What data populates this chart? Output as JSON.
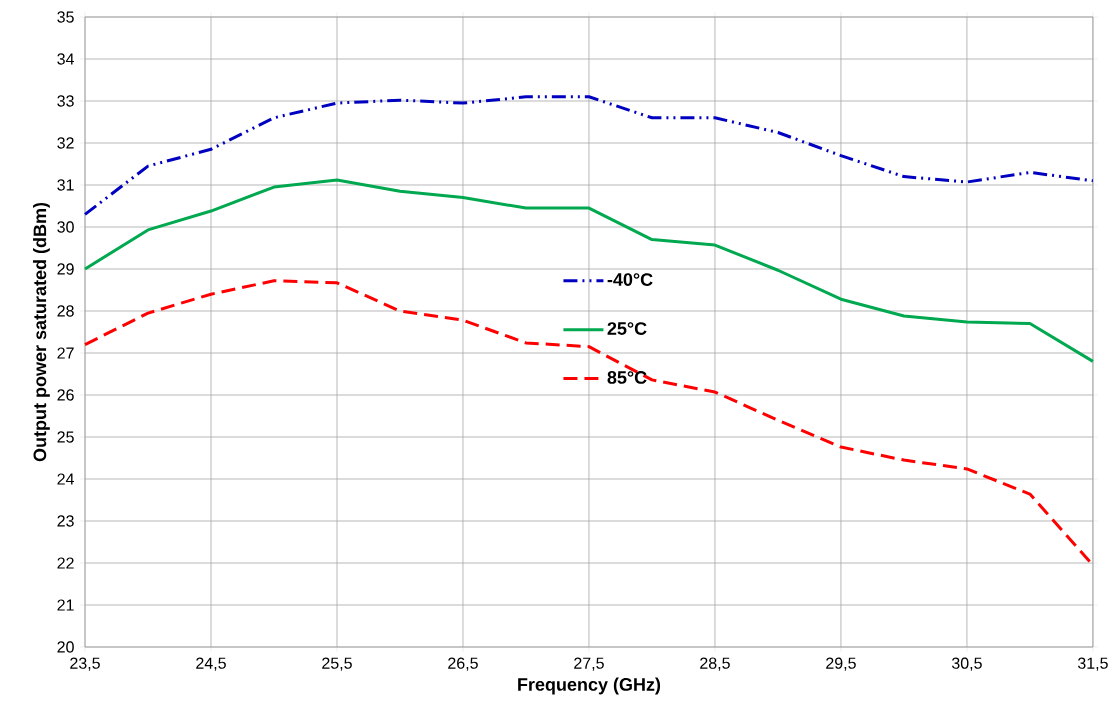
{
  "chart_data": {
    "type": "line",
    "xlabel": "Frequency (GHz)",
    "ylabel": "Output power saturated (dBm)",
    "x": [
      23.5,
      24,
      24.5,
      25,
      25.5,
      26,
      26.5,
      27,
      27.5,
      28,
      28.5,
      29,
      29.5,
      30,
      30.5,
      31,
      31.5
    ],
    "series": [
      {
        "name": "-40°C",
        "color": "#0000c0",
        "line_style": "dashdotdot",
        "values": [
          30.3,
          31.45,
          31.85,
          32.6,
          32.95,
          33.02,
          32.95,
          33.1,
          33.1,
          32.6,
          32.6,
          32.25,
          31.7,
          31.2,
          31.07,
          31.3,
          31.1
        ]
      },
      {
        "name": "25°C",
        "color": "#00a850",
        "line_style": "solid",
        "values": [
          29.0,
          29.93,
          30.38,
          30.95,
          31.12,
          30.85,
          30.7,
          30.45,
          30.45,
          29.7,
          29.57,
          28.97,
          28.28,
          27.88,
          27.74,
          27.7,
          26.8
        ]
      },
      {
        "name": "85°C",
        "color": "#ff0000",
        "line_style": "dashed",
        "values": [
          27.2,
          27.95,
          28.4,
          28.72,
          28.67,
          28.0,
          27.78,
          27.24,
          27.15,
          26.36,
          26.07,
          25.4,
          24.76,
          24.45,
          24.24,
          23.64,
          21.95
        ]
      }
    ],
    "xlim": [
      23.5,
      31.5
    ],
    "xticks": [
      {
        "value": 23.5,
        "label": "23,5"
      },
      {
        "value": 24.5,
        "label": "24,5"
      },
      {
        "value": 25.5,
        "label": "25,5"
      },
      {
        "value": 26.5,
        "label": "26,5"
      },
      {
        "value": 27.5,
        "label": "27,5"
      },
      {
        "value": 28.5,
        "label": "28,5"
      },
      {
        "value": 29.5,
        "label": "29,5"
      },
      {
        "value": 30.5,
        "label": "30,5"
      },
      {
        "value": 31.5,
        "label": "31,5"
      }
    ],
    "ylim": [
      20,
      35
    ],
    "yticks": [
      20,
      21,
      22,
      23,
      24,
      25,
      26,
      27,
      28,
      29,
      30,
      31,
      32,
      33,
      34,
      35
    ],
    "grid": true,
    "legend": "center",
    "marker": "none"
  }
}
